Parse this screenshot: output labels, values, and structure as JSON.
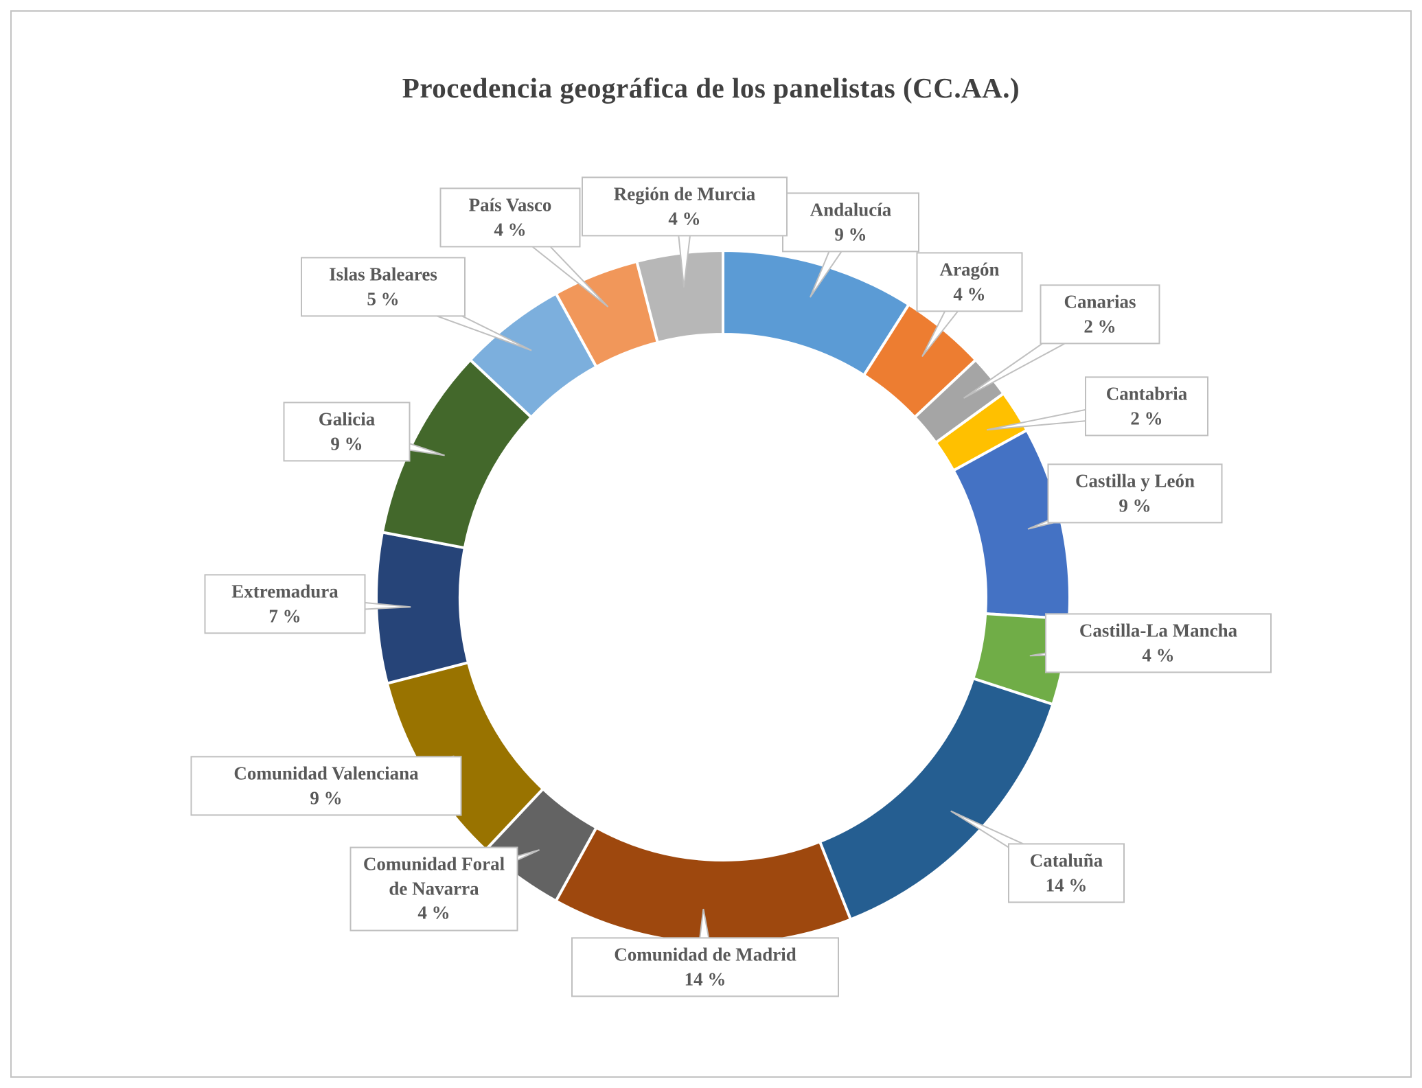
{
  "page": {
    "background": "#ffffff",
    "border_color": "#c3c3c3"
  },
  "chart_data": {
    "type": "pie",
    "variant": "donut",
    "title": "Procedencia geográfica de los panelistas (CC.AA.)",
    "value_suffix": " %",
    "start_angle_deg": 0,
    "direction": "clockwise",
    "legend_position": "none",
    "labels_style": "callout-boxes",
    "total": 100,
    "segments": [
      {
        "label": "Andalucía",
        "value": 9,
        "color": "#5B9BD5"
      },
      {
        "label": "Aragón",
        "value": 4,
        "color": "#ED7D31"
      },
      {
        "label": "Canarias",
        "value": 2,
        "color": "#A5A5A5"
      },
      {
        "label": "Cantabria",
        "value": 2,
        "color": "#FFC000"
      },
      {
        "label": "Castilla y León",
        "value": 9,
        "color": "#4472C4"
      },
      {
        "label": "Castilla-La Mancha",
        "value": 4,
        "color": "#70AD47"
      },
      {
        "label": "Cataluña",
        "value": 14,
        "color": "#255E91"
      },
      {
        "label": "Comunidad de Madrid",
        "value": 14,
        "color": "#9E480E"
      },
      {
        "label": "Comunidad Foral de Navarra",
        "value": 4,
        "color": "#636363"
      },
      {
        "label": "Comunidad Valenciana",
        "value": 9,
        "color": "#997300"
      },
      {
        "label": "Extremadura",
        "value": 7,
        "color": "#264478"
      },
      {
        "label": "Galicia",
        "value": 9,
        "color": "#43682B"
      },
      {
        "label": "Islas Baleares",
        "value": 5,
        "color": "#7CAFDD"
      },
      {
        "label": "País Vasco",
        "value": 4,
        "color": "#F1975A"
      },
      {
        "label": "Región de Murcia",
        "value": 4,
        "color": "#B7B7B7"
      }
    ]
  }
}
